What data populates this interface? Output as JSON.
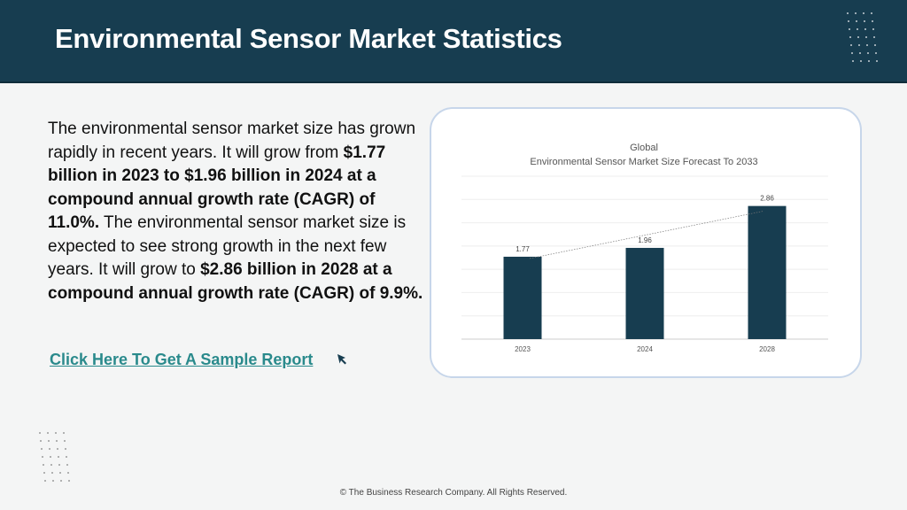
{
  "header": {
    "title": "Environmental Sensor Market Statistics"
  },
  "body": {
    "p1": "The environmental sensor market size has grown rapidly in recent years. It will grow from ",
    "b1": "$1.77 billion in 2023 to $1.96 billion in 2024 at a compound annual growth rate (CAGR) of 11.0%.",
    "p2": " The environmental sensor market size is expected to see strong growth in the next few years. It will grow to ",
    "b2": "$2.86 billion in 2028 at a compound annual growth rate (CAGR) of 9.9%."
  },
  "cta": {
    "label": "Click Here To Get A Sample Report",
    "icon": "cursor-arrow-icon"
  },
  "footer": {
    "text": "© The Business Research Company. All Rights Reserved."
  },
  "colors": {
    "header_bg": "#173d50",
    "bar": "#173d50",
    "link": "#2a8a8c"
  },
  "chart_data": {
    "type": "bar",
    "title_line1": "Global",
    "title_line2": "Environmental Sensor Market Size Forecast To 2033",
    "categories": [
      "2023",
      "2024",
      "2028"
    ],
    "values": [
      1.77,
      1.96,
      2.86
    ],
    "value_labels": [
      "1.77",
      "1.96",
      "2.86"
    ],
    "ylim": [
      0,
      3.5
    ],
    "grid": true,
    "trendline": true,
    "legend": "none"
  }
}
